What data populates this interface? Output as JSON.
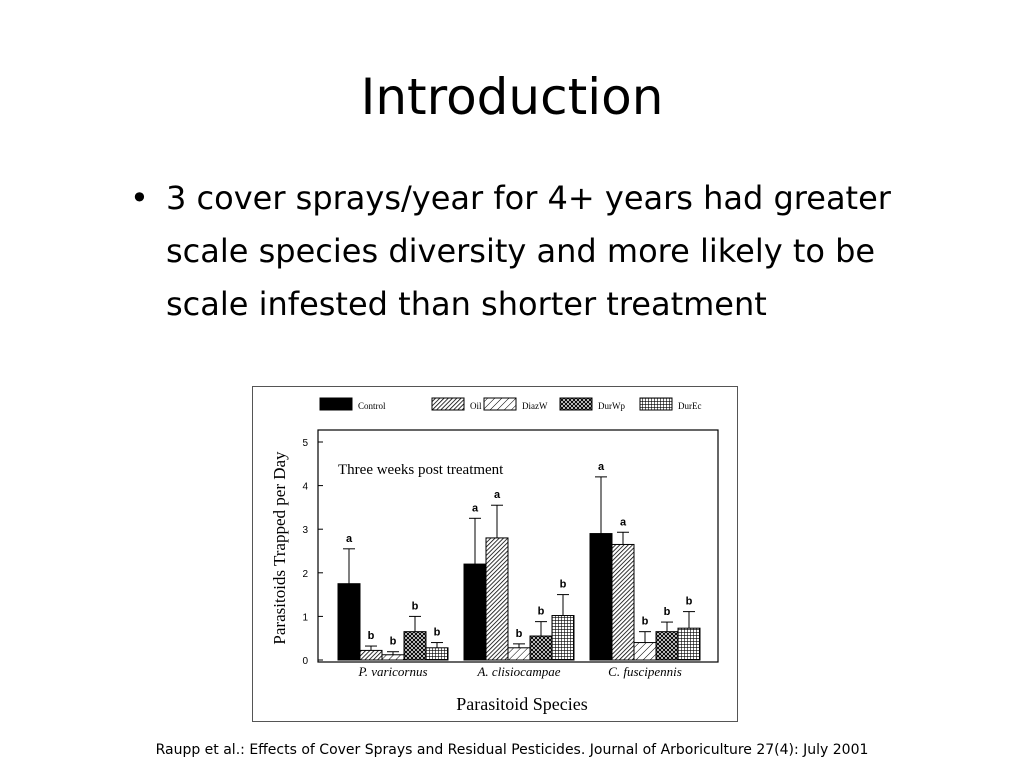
{
  "slide": {
    "title": "Introduction",
    "bullets": [
      "3 cover sprays/year for 4+ years had greater scale species diversity and more likely to be scale infested than shorter treatment"
    ],
    "citation": "Raupp et al.: Effects of Cover Sprays and Residual Pesticides. Journal of Arboriculture 27(4): July 2001"
  },
  "chart_data": {
    "type": "bar",
    "title": "",
    "annotation": "Three weeks post treatment",
    "xlabel": "Parasitoid Species",
    "ylabel": "Parasitoids Trapped per Day",
    "ylim": [
      0,
      5
    ],
    "yticks": [
      0,
      1,
      2,
      3,
      4,
      5
    ],
    "grid": false,
    "legend_position": "top",
    "categories": [
      "P. varicornus",
      "A. clisiocampae",
      "C. fuscipennis"
    ],
    "series": [
      {
        "name": "Control",
        "values": [
          1.75,
          2.2,
          2.9
        ],
        "errors": [
          0.8,
          1.05,
          1.3
        ],
        "letters": [
          "a",
          "a",
          "a"
        ],
        "pattern": "solid"
      },
      {
        "name": "Oil",
        "values": [
          0.22,
          2.8,
          2.65
        ],
        "errors": [
          0.1,
          0.75,
          0.28
        ],
        "letters": [
          "b",
          "a",
          "a"
        ],
        "pattern": "diag-dense"
      },
      {
        "name": "DiazW",
        "values": [
          0.12,
          0.28,
          0.4
        ],
        "errors": [
          0.07,
          0.09,
          0.25
        ],
        "letters": [
          "b",
          "b",
          "b"
        ],
        "pattern": "diag-light"
      },
      {
        "name": "DurWp",
        "values": [
          0.65,
          0.55,
          0.65
        ],
        "errors": [
          0.35,
          0.33,
          0.22
        ],
        "letters": [
          "b",
          "b",
          "b"
        ],
        "pattern": "crosshatch"
      },
      {
        "name": "DurEc",
        "values": [
          0.28,
          1.02,
          0.73
        ],
        "errors": [
          0.12,
          0.48,
          0.38
        ],
        "letters": [
          "b",
          "b",
          "b"
        ],
        "pattern": "grid"
      }
    ],
    "colors": {
      "ink": "#000000",
      "background": "#ffffff"
    }
  }
}
